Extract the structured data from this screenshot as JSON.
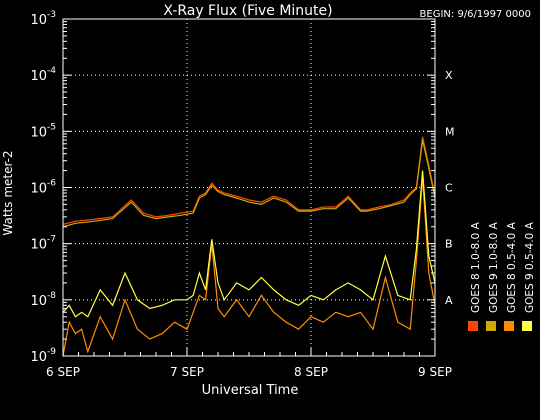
{
  "chart_data": {
    "type": "line",
    "title": "X-Ray Flux (Five Minute)",
    "begin_label": "BEGIN: 9/6/1997 0000",
    "xlabel": "Universal Time",
    "ylabel": "Watts meter-2",
    "x_tick_labels": [
      "6 SEP",
      "7 SEP",
      "8 SEP",
      "9 SEP"
    ],
    "xlim_days": [
      0,
      3
    ],
    "ylim": [
      1e-09,
      0.001
    ],
    "y_scale": "log",
    "y_tick_labels": [
      {
        "value": 1e-09,
        "label": "10^-9"
      },
      {
        "value": 1e-08,
        "label": "10^-8"
      },
      {
        "value": 1e-07,
        "label": "10^-7"
      },
      {
        "value": 1e-06,
        "label": "10^-6"
      },
      {
        "value": 1e-05,
        "label": "10^-5"
      },
      {
        "value": 0.0001,
        "label": "10^-4"
      },
      {
        "value": 0.001,
        "label": "10^-3"
      }
    ],
    "flare_classes": [
      {
        "label": "A",
        "value": 1e-08
      },
      {
        "label": "B",
        "value": 1e-07
      },
      {
        "label": "C",
        "value": 1e-06
      },
      {
        "label": "M",
        "value": 1e-05
      },
      {
        "label": "X",
        "value": 0.0001
      }
    ],
    "grid": true,
    "legend_position": "right",
    "series": [
      {
        "name": "GOES 8 1.0-8.0 A",
        "color": "#ff4500",
        "x": [
          0,
          0.1,
          0.25,
          0.4,
          0.55,
          0.65,
          0.75,
          0.85,
          0.95,
          1.05,
          1.1,
          1.15,
          1.2,
          1.25,
          1.3,
          1.4,
          1.5,
          1.6,
          1.7,
          1.8,
          1.9,
          2.0,
          2.1,
          2.2,
          2.3,
          2.4,
          2.45,
          2.55,
          2.65,
          2.75,
          2.8,
          2.85,
          2.9,
          2.95,
          3.0
        ],
        "values": [
          2.2e-07,
          2.5e-07,
          2.7e-07,
          3e-07,
          6e-07,
          3.5e-07,
          3e-07,
          3.2e-07,
          3.5e-07,
          3.8e-07,
          7e-07,
          8e-07,
          1.2e-06,
          9e-07,
          8e-07,
          7e-07,
          6e-07,
          5.5e-07,
          7e-07,
          6e-07,
          4e-07,
          4e-07,
          4.5e-07,
          4.5e-07,
          7e-07,
          4e-07,
          4e-07,
          4.5e-07,
          5e-07,
          6e-07,
          8e-07,
          1e-06,
          8e-06,
          2.5e-06,
          7e-07
        ]
      },
      {
        "name": "GOES 8 0.5-4.0 A",
        "color": "#ff8c00",
        "x": [
          0,
          0.05,
          0.1,
          0.15,
          0.2,
          0.3,
          0.4,
          0.5,
          0.6,
          0.7,
          0.8,
          0.9,
          1.0,
          1.05,
          1.1,
          1.15,
          1.2,
          1.25,
          1.3,
          1.4,
          1.5,
          1.6,
          1.7,
          1.8,
          1.9,
          2.0,
          2.1,
          2.2,
          2.3,
          2.4,
          2.5,
          2.6,
          2.7,
          2.8,
          2.85,
          2.9,
          2.95,
          3.0
        ],
        "values": [
          1e-09,
          4e-09,
          2.5e-09,
          3e-09,
          1.2e-09,
          5e-09,
          2e-09,
          1e-08,
          3e-09,
          2e-09,
          2.5e-09,
          4e-09,
          3e-09,
          6e-09,
          1.2e-08,
          1e-08,
          1e-07,
          7e-09,
          5e-09,
          1e-08,
          5e-09,
          1.2e-08,
          6e-09,
          4e-09,
          3e-09,
          5e-09,
          4e-09,
          6e-09,
          5e-09,
          6e-09,
          3e-09,
          2.5e-08,
          4e-09,
          3e-09,
          5e-08,
          1.5e-06,
          3e-08,
          8e-09
        ]
      },
      {
        "name": "GOES 9 1.0-8.0 A",
        "color": "#ccaa00",
        "x": [
          0,
          0.1,
          0.25,
          0.4,
          0.55,
          0.65,
          0.75,
          0.85,
          0.95,
          1.05,
          1.1,
          1.15,
          1.2,
          1.25,
          1.3,
          1.4,
          1.5,
          1.6,
          1.7,
          1.8,
          1.9,
          2.0,
          2.1,
          2.2,
          2.3,
          2.4,
          2.45,
          2.55,
          2.65,
          2.75,
          2.8,
          2.85,
          2.9,
          2.95,
          3.0
        ],
        "values": [
          2e-07,
          2.3e-07,
          2.5e-07,
          2.8e-07,
          5.5e-07,
          3.2e-07,
          2.8e-07,
          3e-07,
          3.2e-07,
          3.5e-07,
          6.5e-07,
          7.5e-07,
          1.1e-06,
          8.5e-07,
          7.5e-07,
          6.5e-07,
          5.5e-07,
          5e-07,
          6.5e-07,
          5.5e-07,
          3.8e-07,
          3.8e-07,
          4.2e-07,
          4.2e-07,
          6.5e-07,
          3.8e-07,
          3.8e-07,
          4.2e-07,
          4.8e-07,
          5.5e-07,
          7.5e-07,
          9.5e-07,
          7e-06,
          2.2e-06,
          6.5e-07
        ]
      },
      {
        "name": "GOES 9 0.5-4.0 A",
        "color": "#ffff44",
        "x": [
          0,
          0.05,
          0.1,
          0.15,
          0.2,
          0.3,
          0.4,
          0.5,
          0.6,
          0.7,
          0.8,
          0.9,
          1.0,
          1.05,
          1.1,
          1.15,
          1.2,
          1.25,
          1.3,
          1.4,
          1.5,
          1.6,
          1.7,
          1.8,
          1.9,
          2.0,
          2.1,
          2.2,
          2.3,
          2.4,
          2.5,
          2.6,
          2.7,
          2.8,
          2.85,
          2.9,
          2.95,
          3.0
        ],
        "values": [
          6e-09,
          8e-09,
          5e-09,
          6e-09,
          5e-09,
          1.5e-08,
          8e-09,
          3e-08,
          1e-08,
          7e-09,
          8e-09,
          1e-08,
          1e-08,
          1.2e-08,
          3e-08,
          1.5e-08,
          1.2e-07,
          2e-08,
          1e-08,
          2e-08,
          1.5e-08,
          2.5e-08,
          1.5e-08,
          1e-08,
          8e-09,
          1.2e-08,
          1e-08,
          1.5e-08,
          2e-08,
          1.5e-08,
          1e-08,
          6e-08,
          1.2e-08,
          1e-08,
          8e-08,
          2e-06,
          6e-08,
          2e-08
        ]
      }
    ]
  }
}
